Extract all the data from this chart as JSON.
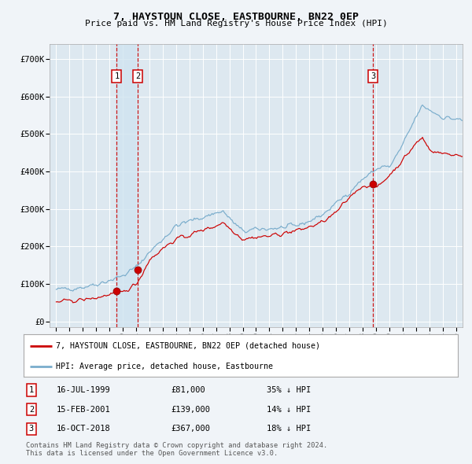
{
  "title": "7, HAYSTOUN CLOSE, EASTBOURNE, BN22 0EP",
  "subtitle": "Price paid vs. HM Land Registry's House Price Index (HPI)",
  "bg_color": "#f0f4f8",
  "plot_bg_color": "#dde8f0",
  "grid_color": "#ffffff",
  "red_line_color": "#cc0000",
  "blue_line_color": "#7aadcc",
  "vline_color": "#cc0000",
  "vshade_color": "#d0e4f0",
  "yticks": [
    0,
    100000,
    200000,
    300000,
    400000,
    500000,
    600000,
    700000
  ],
  "ytick_labels": [
    "£0",
    "£100K",
    "£200K",
    "£300K",
    "£400K",
    "£500K",
    "£600K",
    "£700K"
  ],
  "xlim_start": 1994.5,
  "xlim_end": 2025.5,
  "ylim_min": -15000,
  "ylim_max": 740000,
  "sales": [
    {
      "date_year": 1999.54,
      "price": 81000,
      "label": "1"
    },
    {
      "date_year": 2001.12,
      "price": 139000,
      "label": "2"
    },
    {
      "date_year": 2018.79,
      "price": 367000,
      "label": "3"
    }
  ],
  "sale_table": [
    {
      "num": "1",
      "date": "16-JUL-1999",
      "price": "£81,000",
      "note": "35% ↓ HPI"
    },
    {
      "num": "2",
      "date": "15-FEB-2001",
      "price": "£139,000",
      "note": "14% ↓ HPI"
    },
    {
      "num": "3",
      "date": "16-OCT-2018",
      "price": "£367,000",
      "note": "18% ↓ HPI"
    }
  ],
  "legend_red": "7, HAYSTOUN CLOSE, EASTBOURNE, BN22 0EP (detached house)",
  "legend_blue": "HPI: Average price, detached house, Eastbourne",
  "footer": "Contains HM Land Registry data © Crown copyright and database right 2024.\nThis data is licensed under the Open Government Licence v3.0.",
  "xtick_years": [
    1995,
    1996,
    1997,
    1998,
    1999,
    2000,
    2001,
    2002,
    2003,
    2004,
    2005,
    2006,
    2007,
    2008,
    2009,
    2010,
    2011,
    2012,
    2013,
    2014,
    2015,
    2016,
    2017,
    2018,
    2019,
    2020,
    2021,
    2022,
    2023,
    2024,
    2025
  ]
}
